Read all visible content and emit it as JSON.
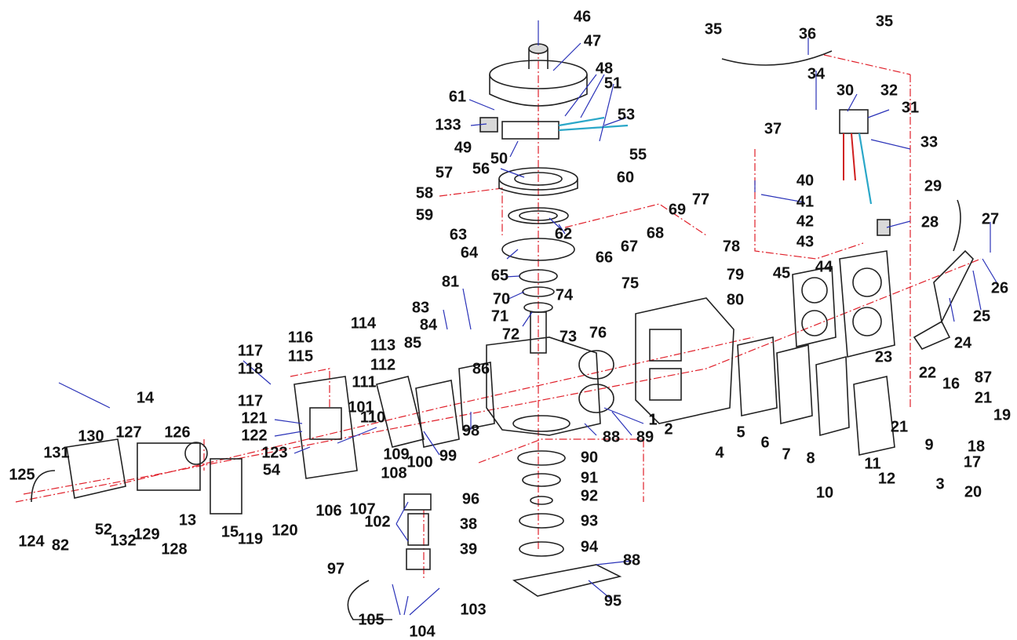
{
  "labels": [
    "1",
    "2",
    "3",
    "4",
    "5",
    "6",
    "7",
    "8",
    "9",
    "10",
    "11",
    "12",
    "13",
    "14",
    "15",
    "16",
    "17",
    "18",
    "19",
    "20",
    "21",
    "21",
    "22",
    "23",
    "24",
    "25",
    "26",
    "27",
    "28",
    "29",
    "30",
    "31",
    "32",
    "33",
    "34",
    "35",
    "35",
    "36",
    "37",
    "38",
    "39",
    "40",
    "41",
    "42",
    "43",
    "44",
    "45",
    "46",
    "47",
    "48",
    "49",
    "50",
    "51",
    "52",
    "53",
    "54",
    "55",
    "56",
    "57",
    "58",
    "59",
    "60",
    "61",
    "62",
    "63",
    "64",
    "65",
    "66",
    "67",
    "68",
    "69",
    "70",
    "71",
    "72",
    "73",
    "74",
    "75",
    "76",
    "77",
    "78",
    "79",
    "80",
    "81",
    "82",
    "83",
    "84",
    "85",
    "86",
    "87",
    "88",
    "88",
    "89",
    "90",
    "91",
    "92",
    "93",
    "94",
    "95",
    "96",
    "97",
    "98",
    "99",
    "100",
    "101",
    "102",
    "103",
    "104",
    "105",
    "106",
    "107",
    "108",
    "109",
    "110",
    "111",
    "112",
    "113",
    "114",
    "115",
    "116",
    "117",
    "117",
    "118",
    "119",
    "120",
    "121",
    "122",
    "123",
    "124",
    "125",
    "126",
    "127",
    "128",
    "129",
    "130",
    "131",
    "132",
    "133"
  ]
}
